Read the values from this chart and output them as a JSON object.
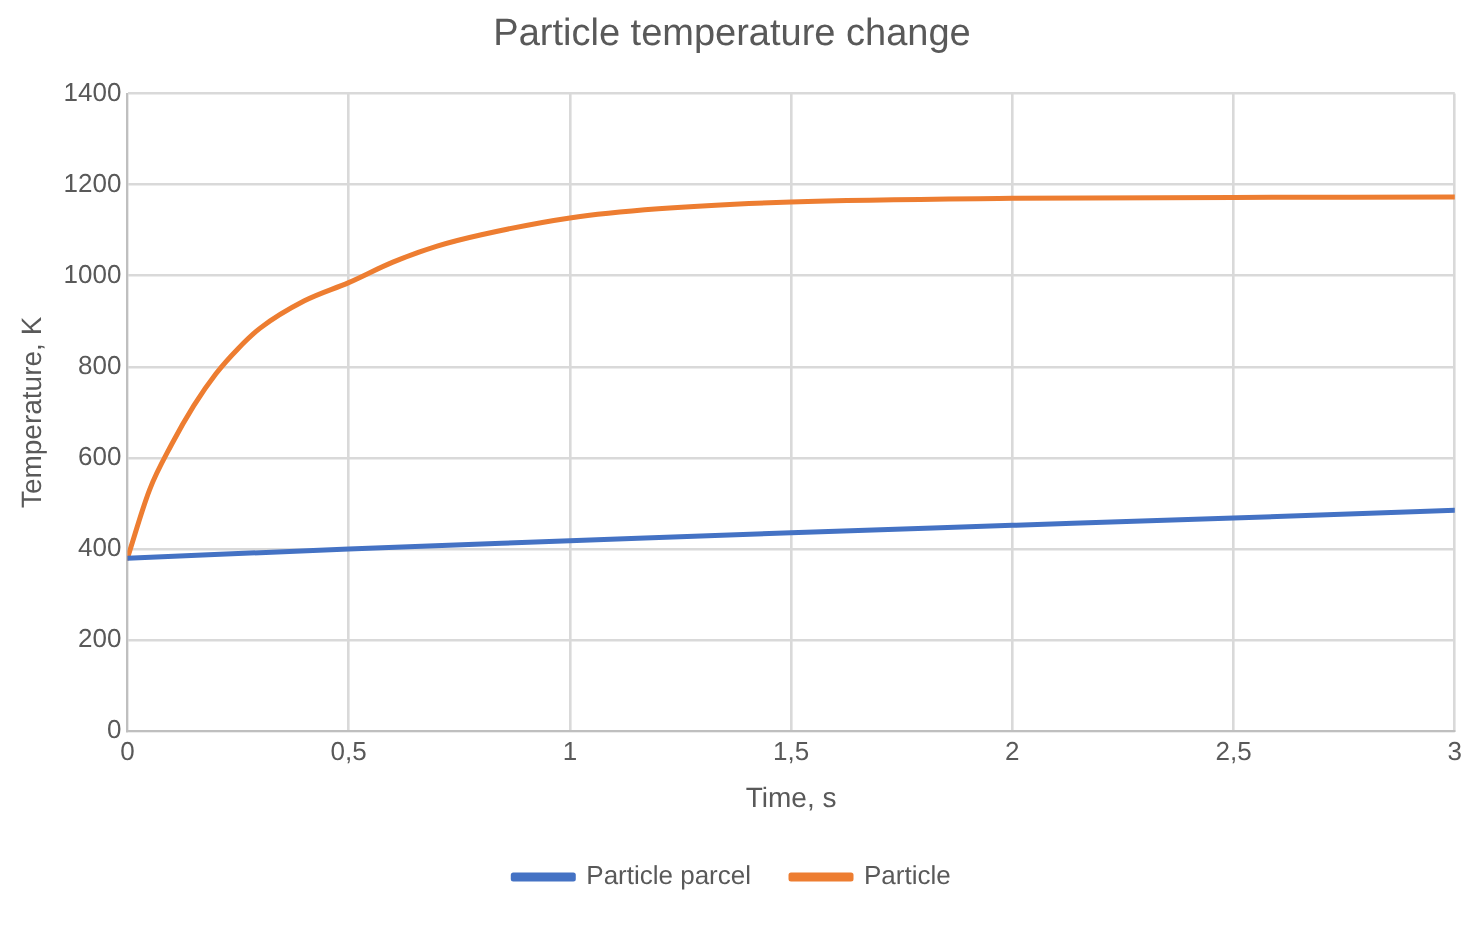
{
  "chart_data": {
    "type": "line",
    "title": "Particle temperature change",
    "xlabel": "Time, s",
    "ylabel": "Temperature, K",
    "xlim": [
      0,
      3
    ],
    "xticks": [
      0,
      {
        "value": 0.5,
        "label": "0,5"
      },
      1,
      {
        "value": 1.5,
        "label": "1,5"
      },
      2,
      {
        "value": 2.5,
        "label": "2,5"
      },
      3
    ],
    "ylim": [
      0,
      1400
    ],
    "yticks": [
      0,
      200,
      400,
      600,
      800,
      1000,
      1200,
      1400
    ],
    "grid": true,
    "legend": "bottom",
    "marker": "none",
    "line_style": "solid",
    "series": [
      {
        "name": "Particle parcel",
        "color": "#4472c4",
        "x": [
          0,
          0.5,
          1,
          1.5,
          2,
          2.5,
          3
        ],
        "values": [
          380,
          400,
          418,
          436,
          452,
          468,
          485
        ]
      },
      {
        "name": "Particle",
        "color": "#ed7d31",
        "x": [
          0,
          0.05,
          0.1,
          0.15,
          0.2,
          0.25,
          0.3,
          0.4,
          0.5,
          0.6,
          0.7,
          0.8,
          1,
          1.2,
          1.5,
          2,
          2.5,
          3
        ],
        "values": [
          380,
          530,
          630,
          715,
          785,
          840,
          885,
          945,
          985,
          1030,
          1065,
          1090,
          1127,
          1147,
          1162,
          1170,
          1172,
          1173
        ]
      }
    ]
  }
}
